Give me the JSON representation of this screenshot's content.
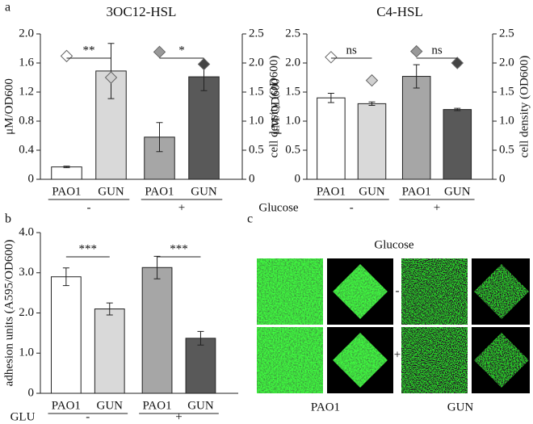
{
  "panel_labels": [
    "a",
    "b",
    "c"
  ],
  "chart_data": [
    {
      "type": "bar",
      "title": "3OC12-HSL",
      "ylabel": "μM/OD600",
      "y2label": "cell density (OD600)",
      "categories": [
        "PAO1",
        "GUN",
        "PAO1",
        "GUN"
      ],
      "groups": [
        "-",
        "+"
      ],
      "group_title": "Glucose",
      "values": [
        0.17,
        1.49,
        0.58,
        1.41
      ],
      "errors": [
        0.01,
        0.38,
        0.2,
        0.19
      ],
      "colors": [
        "#ffffff",
        "#d9d9d9",
        "#a6a6a6",
        "#595959"
      ],
      "y2_values": [
        2.12,
        1.75,
        2.19,
        1.98
      ],
      "y2_colors": [
        "#ffffff",
        "#d0d0d0",
        "#999999",
        "#444444"
      ],
      "significance": [
        "**",
        "*"
      ],
      "ylim": [
        0,
        2.0
      ],
      "yticks": [
        0,
        0.4,
        0.8,
        1.2,
        1.6,
        {
          "value": 2,
          "label": "2.0"
        }
      ],
      "y2lim": [
        0,
        2.5
      ],
      "y2ticks": [
        0,
        0.5,
        {
          "value": 1,
          "label": "1.0"
        },
        1.5,
        {
          "value": 2,
          "label": "2.0"
        },
        2.5
      ]
    },
    {
      "type": "bar",
      "title": "C4-HSL",
      "ylabel": "μM/OD600",
      "y2label": "cell density (OD600)",
      "categories": [
        "PAO1",
        "GUN",
        "PAO1",
        "GUN"
      ],
      "groups": [
        "-",
        "+"
      ],
      "values": [
        1.4,
        1.3,
        1.77,
        1.2
      ],
      "errors": [
        0.08,
        0.03,
        0.2,
        0.02
      ],
      "colors": [
        "#ffffff",
        "#d9d9d9",
        "#a6a6a6",
        "#595959"
      ],
      "y2_values": [
        2.1,
        1.7,
        2.2,
        2.0
      ],
      "y2_colors": [
        "#ffffff",
        "#d0d0d0",
        "#999999",
        "#444444"
      ],
      "significance": [
        "ns",
        "ns"
      ],
      "ylim": [
        0,
        2.5
      ],
      "yticks": [
        0,
        0.5,
        {
          "value": 1,
          "label": "1.0"
        },
        1.5,
        {
          "value": 2,
          "label": "2.0"
        },
        2.5
      ],
      "y2lim": [
        0,
        2.5
      ],
      "y2ticks": [
        0,
        0.5,
        {
          "value": 1,
          "label": "1.0"
        },
        1.5,
        {
          "value": 2,
          "label": "2.0"
        },
        2.5
      ]
    },
    {
      "type": "bar",
      "ylabel": "adhesion units (A595/OD600)",
      "categories": [
        "PAO1",
        "GUN",
        "PAO1",
        "GUN"
      ],
      "groups": [
        "-",
        "+"
      ],
      "group_title": "GLU",
      "values": [
        2.9,
        2.1,
        3.13,
        1.37
      ],
      "errors": [
        0.22,
        0.15,
        0.28,
        0.17
      ],
      "colors": [
        "#ffffff",
        "#d9d9d9",
        "#a6a6a6",
        "#595959"
      ],
      "significance": [
        "***",
        "***"
      ],
      "ylim": [
        0,
        4.0
      ],
      "yticks": [
        0,
        {
          "value": 1,
          "label": "1.0"
        },
        {
          "value": 2,
          "label": "2.0"
        },
        {
          "value": 3,
          "label": "3.0"
        },
        {
          "value": 4,
          "label": "4.0"
        }
      ]
    }
  ],
  "microscopy": {
    "title": "Glucose",
    "rows": [
      "-",
      "+"
    ],
    "columns": [
      "PAO1",
      "GUN"
    ]
  }
}
